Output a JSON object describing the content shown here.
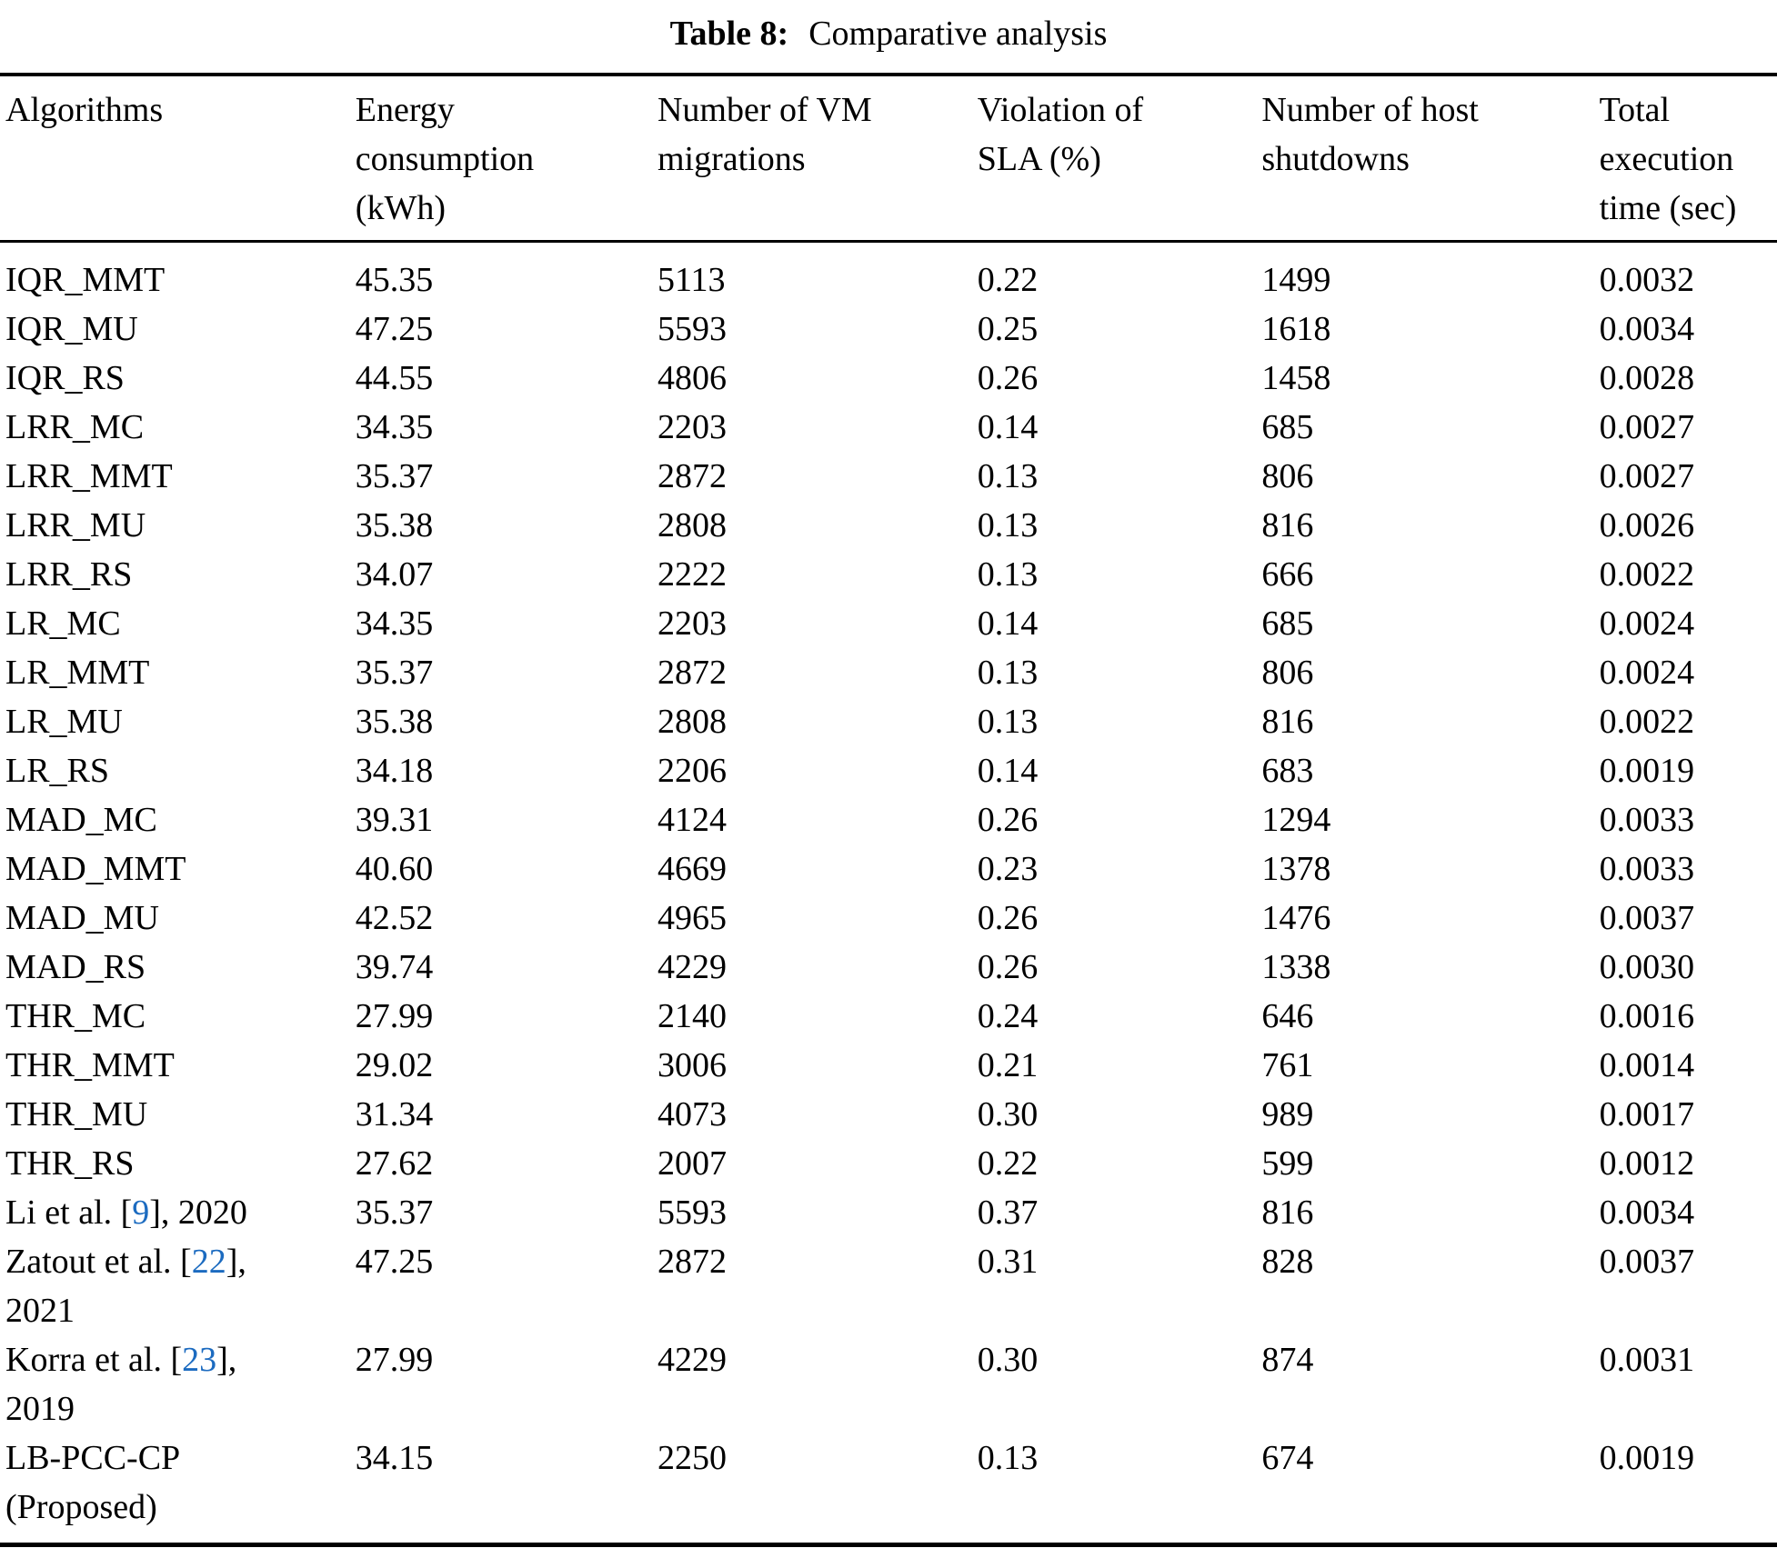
{
  "caption": {
    "label": "Table 8:",
    "text": "Comparative analysis"
  },
  "colors": {
    "citation_link": "#1c6bc0",
    "text": "#000000",
    "background": "#ffffff",
    "rule": "#000000"
  },
  "table": {
    "columns": [
      "Algorithms",
      "Energy\nconsumption\n(kWh)",
      "Number of VM\nmigrations",
      "Violation of\nSLA (%)",
      "Number of host\nshutdowns",
      "Total\nexecution\ntime (sec)"
    ],
    "rows": [
      {
        "pre": "IQR_MMT",
        "energy": "45.35",
        "migrations": "5113",
        "sla": "0.22",
        "shutdowns": "1499",
        "time": "0.0032"
      },
      {
        "pre": "IQR_MU",
        "energy": "47.25",
        "migrations": "5593",
        "sla": "0.25",
        "shutdowns": "1618",
        "time": "0.0034"
      },
      {
        "pre": "IQR_RS",
        "energy": "44.55",
        "migrations": "4806",
        "sla": "0.26",
        "shutdowns": "1458",
        "time": "0.0028"
      },
      {
        "pre": "LRR_MC",
        "energy": "34.35",
        "migrations": "2203",
        "sla": "0.14",
        "shutdowns": "685",
        "time": "0.0027"
      },
      {
        "pre": "LRR_MMT",
        "energy": "35.37",
        "migrations": "2872",
        "sla": "0.13",
        "shutdowns": "806",
        "time": "0.0027"
      },
      {
        "pre": "LRR_MU",
        "energy": "35.38",
        "migrations": "2808",
        "sla": "0.13",
        "shutdowns": "816",
        "time": "0.0026"
      },
      {
        "pre": "LRR_RS",
        "energy": "34.07",
        "migrations": "2222",
        "sla": "0.13",
        "shutdowns": "666",
        "time": "0.0022"
      },
      {
        "pre": "LR_MC",
        "energy": "34.35",
        "migrations": "2203",
        "sla": "0.14",
        "shutdowns": "685",
        "time": "0.0024"
      },
      {
        "pre": "LR_MMT",
        "energy": "35.37",
        "migrations": "2872",
        "sla": "0.13",
        "shutdowns": "806",
        "time": "0.0024"
      },
      {
        "pre": "LR_MU",
        "energy": "35.38",
        "migrations": "2808",
        "sla": "0.13",
        "shutdowns": "816",
        "time": "0.0022"
      },
      {
        "pre": "LR_RS",
        "energy": "34.18",
        "migrations": "2206",
        "sla": "0.14",
        "shutdowns": "683",
        "time": "0.0019"
      },
      {
        "pre": "MAD_MC",
        "energy": "39.31",
        "migrations": "4124",
        "sla": "0.26",
        "shutdowns": "1294",
        "time": "0.0033"
      },
      {
        "pre": "MAD_MMT",
        "energy": "40.60",
        "migrations": "4669",
        "sla": "0.23",
        "shutdowns": "1378",
        "time": "0.0033"
      },
      {
        "pre": "MAD_MU",
        "energy": "42.52",
        "migrations": "4965",
        "sla": "0.26",
        "shutdowns": "1476",
        "time": "0.0037"
      },
      {
        "pre": "MAD_RS",
        "energy": "39.74",
        "migrations": "4229",
        "sla": "0.26",
        "shutdowns": "1338",
        "time": "0.0030"
      },
      {
        "pre": "THR_MC",
        "energy": "27.99",
        "migrations": "2140",
        "sla": "0.24",
        "shutdowns": "646",
        "time": "0.0016"
      },
      {
        "pre": "THR_MMT",
        "energy": "29.02",
        "migrations": "3006",
        "sla": "0.21",
        "shutdowns": "761",
        "time": "0.0014"
      },
      {
        "pre": "THR_MU",
        "energy": "31.34",
        "migrations": "4073",
        "sla": "0.30",
        "shutdowns": "989",
        "time": "0.0017"
      },
      {
        "pre": "THR_RS",
        "energy": "27.62",
        "migrations": "2007",
        "sla": "0.22",
        "shutdowns": "599",
        "time": "0.0012"
      },
      {
        "pre": "Li et al. [",
        "cite": "9",
        "post": "], 2020",
        "energy": "35.37",
        "migrations": "5593",
        "sla": "0.37",
        "shutdowns": "816",
        "time": "0.0034"
      },
      {
        "pre": "Zatout et al. [",
        "cite": "22",
        "post": "],\n2021",
        "energy": "47.25",
        "migrations": "2872",
        "sla": "0.31",
        "shutdowns": "828",
        "time": "0.0037"
      },
      {
        "pre": "Korra et al. [",
        "cite": "23",
        "post": "],\n2019",
        "energy": "27.99",
        "migrations": "4229",
        "sla": "0.30",
        "shutdowns": "874",
        "time": "0.0031"
      },
      {
        "pre": "LB-PCC-CP\n(Proposed)",
        "energy": "34.15",
        "migrations": "2250",
        "sla": "0.13",
        "shutdowns": "674",
        "time": "0.0019"
      }
    ]
  }
}
